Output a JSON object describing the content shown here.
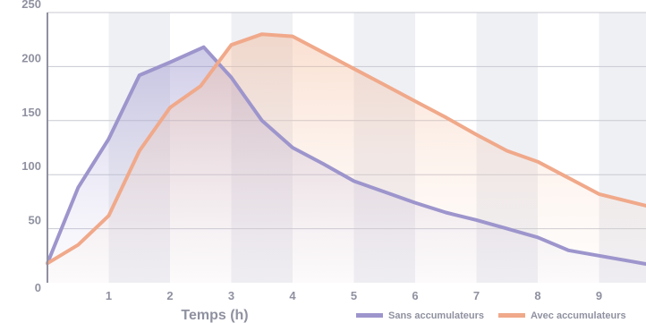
{
  "chart_data": {
    "type": "area",
    "title": "",
    "xlabel": "Temps (h)",
    "ylabel": "",
    "xlim": [
      0,
      10
    ],
    "ylim": [
      0,
      250
    ],
    "x_ticks": [
      "1",
      "2",
      "3",
      "4",
      "5",
      "6",
      "7",
      "8",
      "9"
    ],
    "y_ticks": [
      "0",
      "50",
      "100",
      "150",
      "200",
      "250"
    ],
    "grid": true,
    "legend_position": "bottom-right",
    "series": [
      {
        "name": "Sans accumulateurs",
        "color": "#9d95cc",
        "x": [
          0,
          0.5,
          1,
          1.5,
          2,
          2.55,
          3,
          3.5,
          4,
          4.5,
          5,
          5.5,
          6,
          6.5,
          7,
          7.5,
          8,
          8.5,
          9,
          9.5,
          10
        ],
        "values": [
          18,
          88,
          133,
          192,
          204,
          218,
          190,
          150,
          125,
          110,
          94,
          84,
          74,
          65,
          58,
          50,
          42,
          30,
          25,
          20,
          15
        ]
      },
      {
        "name": "Avec accumulateurs",
        "color": "#f0a98a",
        "x": [
          0,
          0.5,
          1,
          1.5,
          2,
          2.5,
          3,
          3.5,
          4,
          4.5,
          5,
          5.5,
          6,
          6.5,
          7,
          7.5,
          8,
          8.5,
          9,
          9.5,
          10
        ],
        "values": [
          18,
          35,
          62,
          122,
          162,
          182,
          220,
          230,
          228,
          213,
          198,
          183,
          168,
          153,
          137,
          122,
          112,
          97,
          82,
          75,
          68
        ]
      }
    ]
  }
}
